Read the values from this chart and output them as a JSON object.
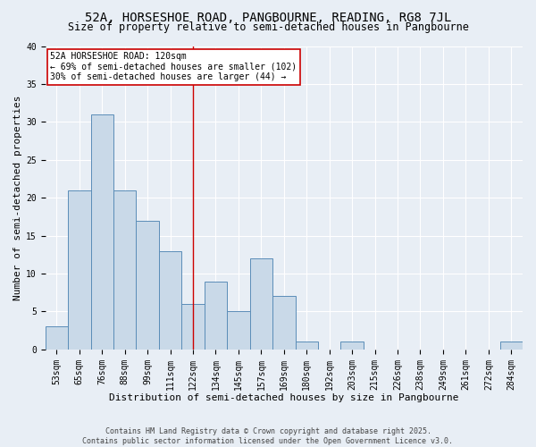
{
  "title": "52A, HORSESHOE ROAD, PANGBOURNE, READING, RG8 7JL",
  "subtitle": "Size of property relative to semi-detached houses in Pangbourne",
  "xlabel": "Distribution of semi-detached houses by size in Pangbourne",
  "ylabel": "Number of semi-detached properties",
  "categories": [
    "53sqm",
    "65sqm",
    "76sqm",
    "88sqm",
    "99sqm",
    "111sqm",
    "122sqm",
    "134sqm",
    "145sqm",
    "157sqm",
    "169sqm",
    "180sqm",
    "192sqm",
    "203sqm",
    "215sqm",
    "226sqm",
    "238sqm",
    "249sqm",
    "261sqm",
    "272sqm",
    "284sqm"
  ],
  "values": [
    3,
    21,
    31,
    21,
    17,
    13,
    6,
    9,
    5,
    12,
    7,
    1,
    0,
    1,
    0,
    0,
    0,
    0,
    0,
    0,
    1
  ],
  "bar_color": "#c9d9e8",
  "bar_edge_color": "#5b8db8",
  "highlight_index": 6,
  "highlight_line_color": "#cc0000",
  "annotation_line1": "52A HORSESHOE ROAD: 120sqm",
  "annotation_line2": "← 69% of semi-detached houses are smaller (102)",
  "annotation_line3": "30% of semi-detached houses are larger (44) →",
  "annotation_box_color": "#ffffff",
  "annotation_box_edge": "#cc0000",
  "ylim": [
    0,
    40
  ],
  "yticks": [
    0,
    5,
    10,
    15,
    20,
    25,
    30,
    35,
    40
  ],
  "bg_color": "#e8eef5",
  "plot_bg_color": "#e8eef5",
  "footer": "Contains HM Land Registry data © Crown copyright and database right 2025.\nContains public sector information licensed under the Open Government Licence v3.0.",
  "title_fontsize": 10,
  "subtitle_fontsize": 8.5,
  "axis_label_fontsize": 8,
  "tick_fontsize": 7,
  "annotation_fontsize": 7,
  "footer_fontsize": 6
}
